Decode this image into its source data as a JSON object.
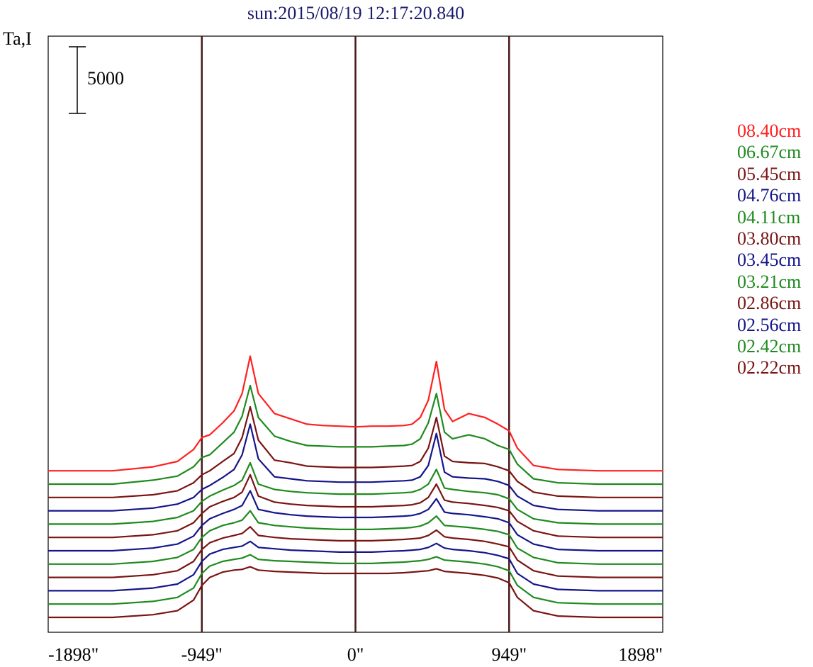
{
  "chart_data": {
    "type": "line",
    "title": "sun:2015/08/19 12:17:20.840",
    "ylabel": "Ta,I",
    "x_tick_labels": [
      "-1898\"",
      "-949\"",
      "0\"",
      "949\"",
      "1898\""
    ],
    "xlim": [
      -1898,
      1898
    ],
    "vertical_markers": [
      -949,
      0,
      949
    ],
    "marker_color": "#4a1a1a",
    "scale_bar": {
      "value": 5000,
      "label": "5000"
    },
    "profile_positions": [
      -1898,
      -1500,
      -1250,
      -1100,
      -1000,
      -949,
      -900,
      -820,
      -750,
      -700,
      -650,
      -600,
      -500,
      -400,
      -300,
      -200,
      -100,
      0,
      100,
      200,
      300,
      350,
      400,
      450,
      500,
      550,
      600,
      700,
      800,
      880,
      949,
      1000,
      1100,
      1250,
      1500,
      1898
    ],
    "series": [
      {
        "name": "08.40cm",
        "color": "#ff2020",
        "offset": 11000,
        "values": [
          0,
          0,
          300,
          700,
          1600,
          2500,
          2700,
          3600,
          4500,
          5800,
          8600,
          5800,
          4300,
          3900,
          3500,
          3400,
          3350,
          3300,
          3350,
          3350,
          3400,
          3500,
          4000,
          5300,
          8200,
          4600,
          3700,
          4300,
          4000,
          3500,
          3000,
          1700,
          400,
          100,
          0,
          0
        ]
      },
      {
        "name": "06.67cm",
        "color": "#1f8a1f",
        "offset": 10000,
        "values": [
          0,
          0,
          300,
          600,
          1300,
          2000,
          2200,
          3100,
          3900,
          5100,
          7400,
          5000,
          3600,
          3200,
          2900,
          2850,
          2800,
          2800,
          2800,
          2850,
          2900,
          3000,
          3400,
          4600,
          6800,
          3900,
          3400,
          3700,
          3400,
          2900,
          2600,
          1500,
          400,
          100,
          0,
          0
        ]
      },
      {
        "name": "05.45cm",
        "color": "#7a1414",
        "offset": 9000,
        "values": [
          0,
          0,
          200,
          500,
          1100,
          1700,
          2000,
          2700,
          3300,
          4500,
          6800,
          4300,
          2800,
          2600,
          2350,
          2300,
          2250,
          2250,
          2250,
          2300,
          2350,
          2400,
          2700,
          3700,
          6000,
          3100,
          2700,
          2600,
          2550,
          2300,
          2000,
          1200,
          400,
          100,
          0,
          0
        ]
      },
      {
        "name": "04.76cm",
        "color": "#15158a",
        "offset": 8000,
        "values": [
          0,
          0,
          200,
          500,
          1000,
          1600,
          1900,
          2500,
          3100,
          4200,
          6500,
          3900,
          2550,
          2400,
          2250,
          2200,
          2150,
          2150,
          2150,
          2200,
          2250,
          2300,
          2550,
          3400,
          5800,
          2900,
          2550,
          2450,
          2400,
          2200,
          1900,
          1100,
          400,
          100,
          0,
          0
        ]
      },
      {
        "name": "04.11cm",
        "color": "#1f8a1f",
        "offset": 7000,
        "values": [
          0,
          0,
          200,
          500,
          1000,
          1700,
          2100,
          2550,
          2900,
          3300,
          4600,
          3000,
          2600,
          2450,
          2350,
          2300,
          2250,
          2250,
          2250,
          2300,
          2350,
          2400,
          2600,
          3000,
          4100,
          2700,
          2600,
          2450,
          2350,
          2200,
          1900,
          1100,
          400,
          100,
          0,
          0
        ]
      },
      {
        "name": "03.80cm",
        "color": "#7a1414",
        "offset": 6000,
        "values": [
          0,
          0,
          200,
          500,
          1100,
          1800,
          2300,
          2700,
          3000,
          3400,
          4700,
          3100,
          2650,
          2500,
          2400,
          2350,
          2300,
          2300,
          2300,
          2350,
          2400,
          2450,
          2600,
          3000,
          4000,
          2800,
          2650,
          2550,
          2400,
          2250,
          2000,
          1200,
          500,
          100,
          0,
          0
        ]
      },
      {
        "name": "03.45cm",
        "color": "#15158a",
        "offset": 5000,
        "values": [
          0,
          0,
          200,
          500,
          1100,
          1900,
          2400,
          2800,
          3100,
          3400,
          4500,
          3100,
          2850,
          2700,
          2600,
          2550,
          2500,
          2500,
          2500,
          2550,
          2600,
          2650,
          2800,
          3100,
          3900,
          2900,
          2800,
          2700,
          2550,
          2400,
          2100,
          1200,
          500,
          100,
          0,
          0
        ]
      },
      {
        "name": "03.21cm",
        "color": "#1f8a1f",
        "offset": 4000,
        "values": [
          0,
          0,
          200,
          500,
          1100,
          2000,
          2500,
          2900,
          3100,
          3300,
          4000,
          3100,
          2900,
          2800,
          2700,
          2650,
          2600,
          2600,
          2600,
          2650,
          2700,
          2750,
          2850,
          3100,
          3600,
          2900,
          2850,
          2750,
          2600,
          2450,
          2200,
          1200,
          500,
          100,
          0,
          0
        ]
      },
      {
        "name": "02.86cm",
        "color": "#7a1414",
        "offset": 3000,
        "values": [
          0,
          0,
          200,
          500,
          1200,
          2100,
          2600,
          2950,
          3150,
          3300,
          3800,
          3150,
          3000,
          2900,
          2850,
          2800,
          2750,
          2750,
          2750,
          2800,
          2850,
          2900,
          2950,
          3150,
          3550,
          3050,
          2950,
          2850,
          2700,
          2500,
          2300,
          1300,
          500,
          100,
          0,
          0
        ]
      },
      {
        "name": "02.56cm",
        "color": "#15158a",
        "offset": 2000,
        "values": [
          0,
          0,
          200,
          500,
          1200,
          2200,
          2750,
          3100,
          3250,
          3350,
          3700,
          3250,
          3150,
          3050,
          3000,
          2950,
          2900,
          2900,
          2900,
          2950,
          3000,
          3050,
          3100,
          3250,
          3550,
          3200,
          3100,
          3000,
          2850,
          2650,
          2400,
          1300,
          500,
          100,
          0,
          0
        ]
      },
      {
        "name": "02.42cm",
        "color": "#1f8a1f",
        "offset": 1000,
        "values": [
          0,
          0,
          200,
          500,
          1200,
          2300,
          2850,
          3200,
          3350,
          3450,
          3700,
          3350,
          3250,
          3200,
          3150,
          3100,
          3050,
          3050,
          3050,
          3100,
          3150,
          3200,
          3250,
          3350,
          3550,
          3300,
          3250,
          3150,
          3000,
          2800,
          2500,
          1400,
          500,
          100,
          0,
          0
        ]
      },
      {
        "name": "02.22cm",
        "color": "#7a1414",
        "offset": 0,
        "values": [
          0,
          0,
          200,
          500,
          1300,
          2400,
          3000,
          3400,
          3550,
          3600,
          3800,
          3550,
          3450,
          3400,
          3350,
          3300,
          3300,
          3300,
          3300,
          3300,
          3350,
          3400,
          3450,
          3500,
          3650,
          3450,
          3400,
          3300,
          3150,
          2950,
          2600,
          1500,
          500,
          100,
          0,
          0
        ]
      }
    ]
  }
}
